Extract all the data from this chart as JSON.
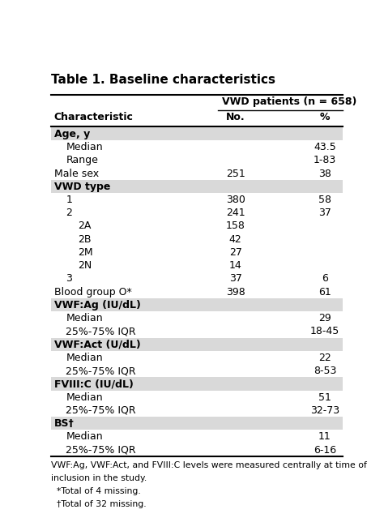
{
  "title": "Table 1. Baseline characteristics",
  "header_main": "VWD patients (n = 658)",
  "col_characteristic": "Characteristic",
  "col_no": "No.",
  "col_pct": "%",
  "rows": [
    {
      "label": "Age, y",
      "no": "",
      "pct": "",
      "indent": 0,
      "bold": true,
      "shaded": true
    },
    {
      "label": "Median",
      "no": "",
      "pct": "43.5",
      "indent": 1,
      "bold": false,
      "shaded": false
    },
    {
      "label": "Range",
      "no": "",
      "pct": "1-83",
      "indent": 1,
      "bold": false,
      "shaded": false
    },
    {
      "label": "Male sex",
      "no": "251",
      "pct": "38",
      "indent": 0,
      "bold": false,
      "shaded": false
    },
    {
      "label": "VWD type",
      "no": "",
      "pct": "",
      "indent": 0,
      "bold": true,
      "shaded": true
    },
    {
      "label": "1",
      "no": "380",
      "pct": "58",
      "indent": 1,
      "bold": false,
      "shaded": false
    },
    {
      "label": "2",
      "no": "241",
      "pct": "37",
      "indent": 1,
      "bold": false,
      "shaded": false
    },
    {
      "label": "2A",
      "no": "158",
      "pct": "",
      "indent": 2,
      "bold": false,
      "shaded": false
    },
    {
      "label": "2B",
      "no": "42",
      "pct": "",
      "indent": 2,
      "bold": false,
      "shaded": false
    },
    {
      "label": "2M",
      "no": "27",
      "pct": "",
      "indent": 2,
      "bold": false,
      "shaded": false
    },
    {
      "label": "2N",
      "no": "14",
      "pct": "",
      "indent": 2,
      "bold": false,
      "shaded": false
    },
    {
      "label": "3",
      "no": "37",
      "pct": "6",
      "indent": 1,
      "bold": false,
      "shaded": false
    },
    {
      "label": "Blood group O*",
      "no": "398",
      "pct": "61",
      "indent": 0,
      "bold": false,
      "shaded": false
    },
    {
      "label": "VWF:Ag (IU/dL)",
      "no": "",
      "pct": "",
      "indent": 0,
      "bold": true,
      "shaded": true
    },
    {
      "label": "Median",
      "no": "",
      "pct": "29",
      "indent": 1,
      "bold": false,
      "shaded": false
    },
    {
      "label": "25%-75% IQR",
      "no": "",
      "pct": "18-45",
      "indent": 1,
      "bold": false,
      "shaded": false
    },
    {
      "label": "VWF:Act (U/dL)",
      "no": "",
      "pct": "",
      "indent": 0,
      "bold": true,
      "shaded": true
    },
    {
      "label": "Median",
      "no": "",
      "pct": "22",
      "indent": 1,
      "bold": false,
      "shaded": false
    },
    {
      "label": "25%-75% IQR",
      "no": "",
      "pct": "8-53",
      "indent": 1,
      "bold": false,
      "shaded": false
    },
    {
      "label": "FVIII:C (IU/dL)",
      "no": "",
      "pct": "",
      "indent": 0,
      "bold": true,
      "shaded": true
    },
    {
      "label": "Median",
      "no": "",
      "pct": "51",
      "indent": 1,
      "bold": false,
      "shaded": false
    },
    {
      "label": "25%-75% IQR",
      "no": "",
      "pct": "32-73",
      "indent": 1,
      "bold": false,
      "shaded": false
    },
    {
      "label": "BS†",
      "no": "",
      "pct": "",
      "indent": 0,
      "bold": true,
      "shaded": true
    },
    {
      "label": "Median",
      "no": "",
      "pct": "11",
      "indent": 1,
      "bold": false,
      "shaded": false
    },
    {
      "label": "25%-75% IQR",
      "no": "",
      "pct": "6-16",
      "indent": 1,
      "bold": false,
      "shaded": false
    }
  ],
  "footnote_line1": "VWF:Ag, VWF:Act, and FVIII:C levels were measured centrally at time of",
  "footnote_line2": "inclusion in the study.",
  "footnote_line3": "  *Total of 4 missing.",
  "footnote_line4": "  †Total of 32 missing.",
  "bg_white": "#ffffff",
  "bg_shaded": "#d9d9d9",
  "text_color": "#000000",
  "font_size": 9,
  "title_font_size": 11
}
